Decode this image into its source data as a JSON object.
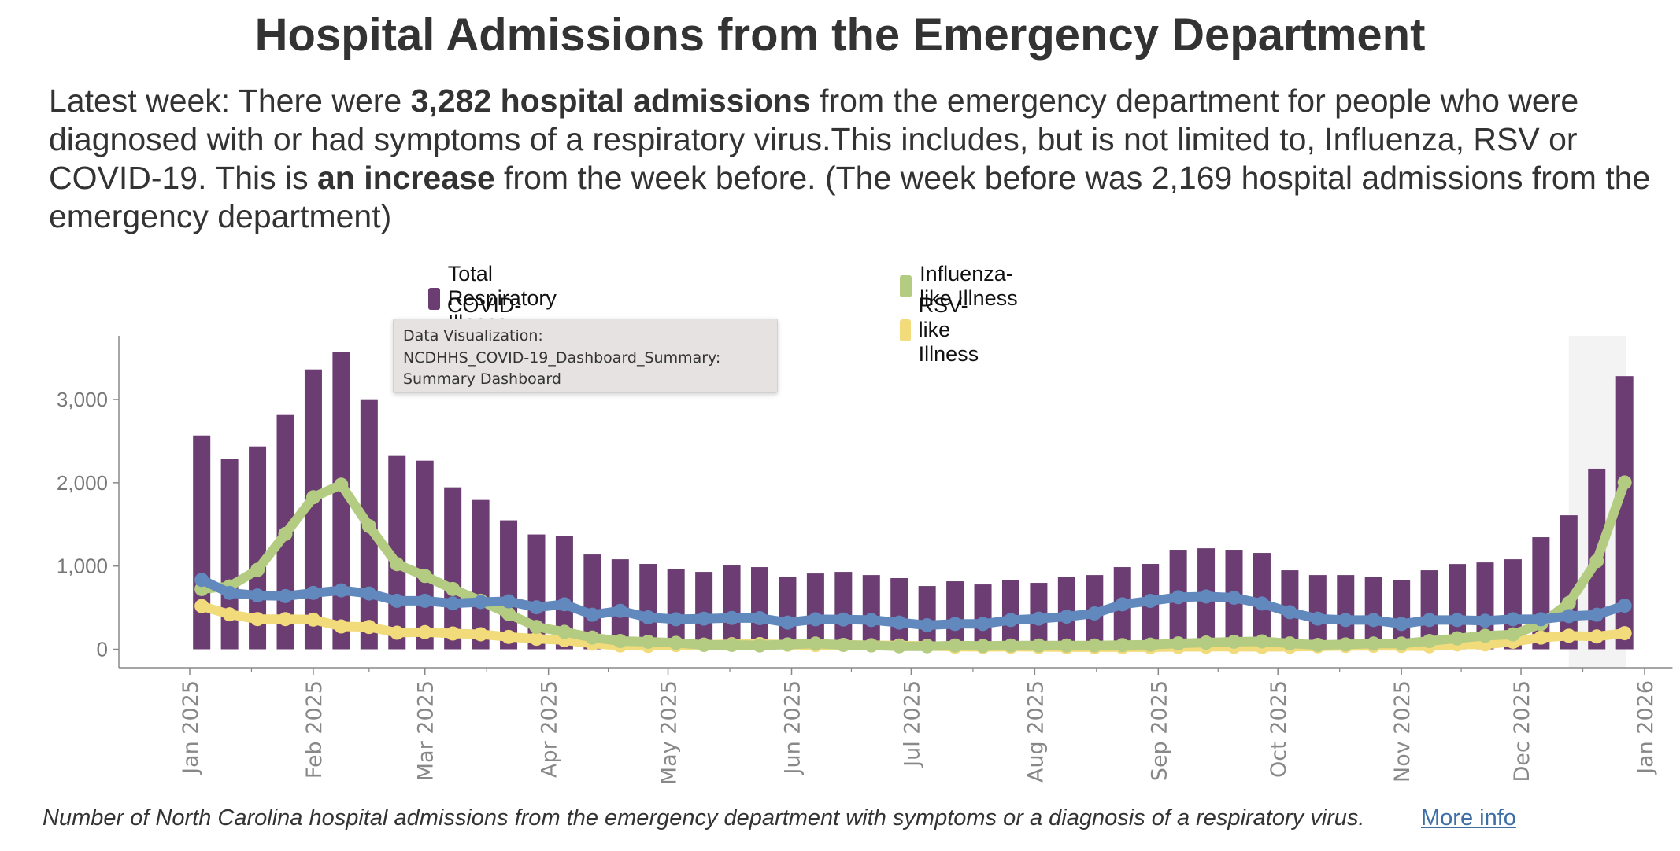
{
  "header": {
    "title": "Hospital Admissions from the Emergency Department",
    "summary": {
      "prefix": "Latest week: There were ",
      "bold_count": "3,282 hospital admissions",
      "middle": " from the emergency department for people who were diagnosed with or had symptoms of a respiratory virus.This includes, but is not limited to, Influenza, RSV or COVID-19. This is ",
      "bold_change": "an increase",
      "suffix": " from the week before. (The week before was 2,169 hospital admissions from the emergency department)"
    }
  },
  "tooltip": {
    "lines": [
      "Data Visualization:",
      "NCDHHS_COVID-19_Dashboard_Summary:",
      "Summary Dashboard"
    ]
  },
  "footer": {
    "caption": "Number of North Carolina hospital admissions from the emergency department with symptoms or a diagnosis of a respiratory virus.",
    "more_info_label": "More info"
  },
  "chart_data": {
    "type": "bar",
    "title": "Hospital Admissions from the Emergency Department",
    "xlabel": "",
    "ylabel": "",
    "ylim": [
      0,
      3700
    ],
    "y_ticks": [
      0,
      1000,
      2000,
      3000
    ],
    "y_tick_labels": [
      "0",
      "1,000",
      "2,000",
      "3,000"
    ],
    "x_ticks": [
      "2025-01-01",
      "2025-02-01",
      "2025-03-01",
      "2025-04-01",
      "2025-05-01",
      "2025-06-01",
      "2025-07-01",
      "2025-08-01",
      "2025-09-01",
      "2025-10-01",
      "2025-11-01",
      "2025-12-01",
      "2026-01-01"
    ],
    "x_tick_labels": [
      "Jan 2025",
      "Feb 2025",
      "Mar 2025",
      "Apr 2025",
      "May 2025",
      "Jun 2025",
      "Jul 2025",
      "Aug 2025",
      "Sep 2025",
      "Oct 2025",
      "Nov 2025",
      "Dec 2025",
      "Jan 2026"
    ],
    "x_range": [
      "2024-12-20",
      "2026-01-08"
    ],
    "grid": false,
    "legend_position": "top",
    "first_week": "2025-01-04",
    "week_step_days": 7,
    "highlight": {
      "from_week_index": 49,
      "to_week_index": 51,
      "color": "#f3f3f3"
    },
    "series": [
      {
        "name": "Total Respiratory Illness",
        "kind": "bar",
        "color": "#6b3d72",
        "values": [
          2568,
          2285,
          2436,
          2814,
          3362,
          3569,
          3003,
          2323,
          2266,
          1945,
          1794,
          1549,
          1379,
          1360,
          1138,
          1081,
          1025,
          968,
          930,
          1006,
          987,
          873,
          911,
          930,
          892,
          855,
          760,
          817,
          779,
          836,
          798,
          873,
          892,
          987,
          1025,
          1195,
          1213,
          1195,
          1157,
          949,
          892,
          892,
          873,
          835,
          949,
          1024,
          1043,
          1081,
          1346,
          1610,
          2169,
          3282
        ]
      },
      {
        "name": "Influenza-like Illness",
        "kind": "line",
        "color": "#b3cc82",
        "values": [
          724,
          755,
          954,
          1385,
          1826,
          1977,
          1479,
          1023,
          881,
          724,
          582,
          425,
          268,
          209,
          140,
          99,
          90,
          77,
          52,
          52,
          46,
          58,
          68,
          52,
          46,
          36,
          36,
          45,
          40,
          45,
          45,
          45,
          45,
          50,
          55,
          70,
          80,
          90,
          95,
          70,
          52,
          58,
          68,
          68,
          99,
          131,
          162,
          178,
          304,
          556,
          1060,
          2004
        ]
      },
      {
        "name": "COVID-like Illness",
        "kind": "line",
        "color": "#6289bd",
        "values": [
          834,
          677,
          646,
          639,
          677,
          708,
          670,
          582,
          582,
          551,
          567,
          576,
          504,
          540,
          414,
          461,
          383,
          360,
          367,
          376,
          373,
          320,
          360,
          357,
          351,
          320,
          288,
          304,
          304,
          351,
          367,
          392,
          430,
          540,
          581,
          625,
          634,
          619,
          549,
          445,
          367,
          351,
          351,
          304,
          351,
          351,
          342,
          360,
          360,
          398,
          414,
          524
        ]
      },
      {
        "name": "RSV-like Illness",
        "kind": "line",
        "color": "#f1db7a",
        "values": [
          519,
          419,
          362,
          362,
          356,
          274,
          268,
          198,
          205,
          189,
          180,
          148,
          126,
          110,
          68,
          45,
          40,
          50,
          55,
          60,
          62,
          55,
          50,
          52,
          48,
          45,
          40,
          30,
          28,
          30,
          28,
          25,
          25,
          25,
          25,
          28,
          30,
          30,
          28,
          30,
          35,
          40,
          42,
          40,
          36,
          58,
          58,
          90,
          140,
          162,
          153,
          193
        ]
      }
    ],
    "legend": [
      {
        "label": "Total Respiratory Illness",
        "color": "#6b3d72"
      },
      {
        "label": "Influenza-like Illness",
        "color": "#b3cc82"
      },
      {
        "label": "COVID-like Illness",
        "color": "#6289bd"
      },
      {
        "label": "RSV-like Illness",
        "color": "#f1db7a"
      }
    ]
  }
}
